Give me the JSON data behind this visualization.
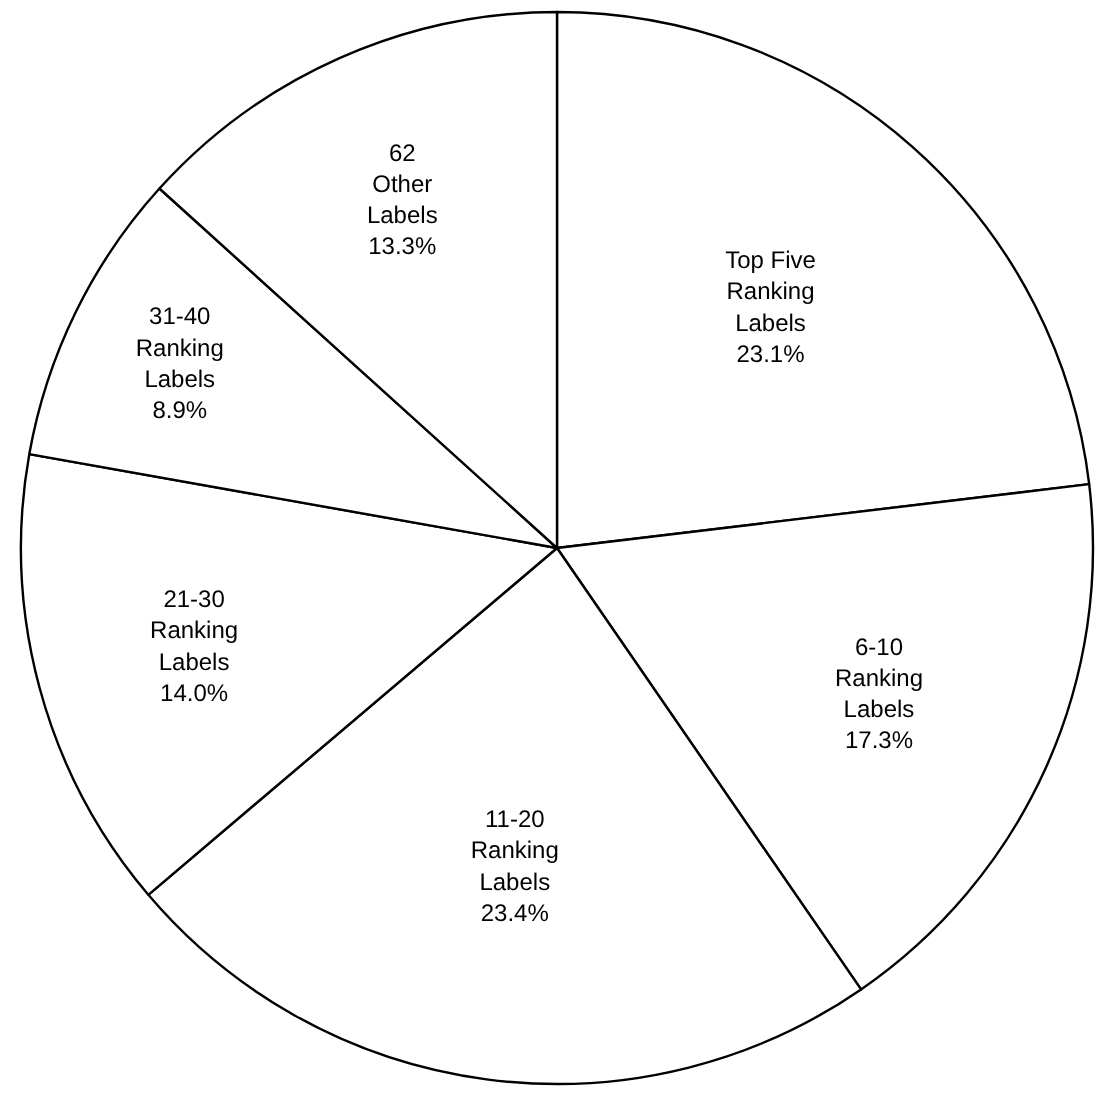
{
  "chart_data": {
    "type": "pie",
    "categories": [
      "Top Five\nRanking\nLabels",
      "6-10\nRanking\nLabels",
      "11-20\nRanking\nLabels",
      "21-30\nRanking\nLabels",
      "31-40\nRanking\nLabels",
      "62\nOther\nLabels"
    ],
    "values": [
      23.1,
      17.3,
      23.4,
      14.0,
      8.9,
      13.3
    ],
    "value_labels": [
      "23.1%",
      "17.3%",
      "23.4%",
      "14.0%",
      "8.9%",
      "13.3%"
    ],
    "colors": [
      "#ffffff",
      "#ffffff",
      "#ffffff",
      "#ffffff",
      "#ffffff",
      "#ffffff"
    ]
  }
}
